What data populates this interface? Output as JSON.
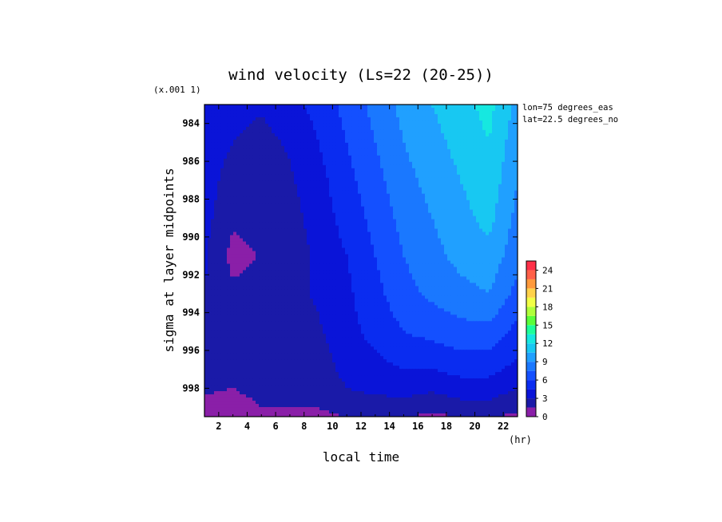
{
  "chart_data": {
    "type": "heatmap",
    "title": "wind velocity (Ls=22 (20-25))",
    "xlabel": "local time",
    "x_unit": "(hr)",
    "ylabel": "sigma at layer midpoints",
    "y_scale_note": "(x.001 1)",
    "annotations": [
      "lon=75 degrees_eas",
      "lat=22.5 degrees_no"
    ],
    "xlim": [
      1,
      23
    ],
    "ylim": [
      999.5,
      983
    ],
    "x_ticks": [
      2,
      4,
      6,
      8,
      10,
      12,
      14,
      16,
      18,
      20,
      22
    ],
    "y_ticks": [
      984,
      986,
      988,
      990,
      992,
      994,
      996,
      998
    ],
    "x": [
      1,
      3,
      5,
      7,
      9,
      11,
      13,
      15,
      17,
      19,
      21,
      23
    ],
    "y": [
      983,
      985,
      987,
      989,
      991,
      993,
      995,
      997,
      999,
      999.5
    ],
    "values": [
      [
        4.5,
        3.5,
        3.2,
        4.0,
        5.0,
        6.5,
        8.0,
        9.5,
        10.5,
        11.5,
        12.5,
        10.0
      ],
      [
        4.0,
        3.0,
        2.5,
        3.2,
        4.5,
        6.0,
        7.5,
        9.0,
        10.0,
        11.0,
        12.0,
        9.5
      ],
      [
        3.8,
        2.2,
        2.3,
        2.8,
        4.0,
        5.5,
        7.0,
        8.5,
        9.5,
        10.5,
        11.5,
        9.0
      ],
      [
        3.5,
        1.8,
        2.0,
        2.3,
        3.8,
        5.0,
        6.5,
        8.0,
        9.0,
        10.0,
        11.0,
        8.5
      ],
      [
        3.2,
        1.0,
        1.6,
        1.8,
        3.5,
        4.5,
        6.0,
        7.5,
        8.5,
        9.5,
        10.0,
        8.0
      ],
      [
        3.0,
        1.8,
        2.2,
        2.6,
        3.2,
        4.2,
        5.5,
        7.0,
        7.8,
        8.5,
        9.0,
        7.0
      ],
      [
        2.8,
        2.2,
        3.0,
        2.4,
        2.8,
        4.0,
        5.0,
        6.0,
        6.5,
        7.0,
        7.0,
        5.5
      ],
      [
        2.5,
        2.2,
        2.6,
        2.2,
        2.2,
        3.5,
        4.0,
        4.5,
        4.5,
        5.0,
        5.0,
        4.0
      ],
      [
        1.0,
        0.8,
        1.5,
        1.6,
        1.5,
        2.5,
        2.5,
        2.5,
        2.0,
        2.5,
        2.5,
        2.0
      ],
      [
        0.5,
        0.5,
        0.8,
        0.8,
        1.0,
        1.5,
        1.5,
        1.5,
        1.2,
        1.5,
        1.5,
        1.2
      ]
    ],
    "colorbar": {
      "levels": [
        0,
        1.5,
        3,
        4.5,
        6,
        7.5,
        9,
        10.5,
        12,
        13.5,
        15,
        16.5,
        18,
        19.5,
        21,
        22.5,
        24,
        25.5
      ],
      "tick_labels": [
        "0",
        "3",
        "6",
        "9",
        "12",
        "15",
        "18",
        "21",
        "24"
      ],
      "colors": [
        "#8a1fa8",
        "#1a1aa8",
        "#0a14d8",
        "#0a2cf0",
        "#1450ff",
        "#1a78ff",
        "#20a0ff",
        "#18c8f2",
        "#16e8e0",
        "#1cff9a",
        "#5aff3a",
        "#b0ff3a",
        "#f2ff46",
        "#ffd24a",
        "#ff9a3c",
        "#ff6048",
        "#ff3048"
      ]
    }
  }
}
